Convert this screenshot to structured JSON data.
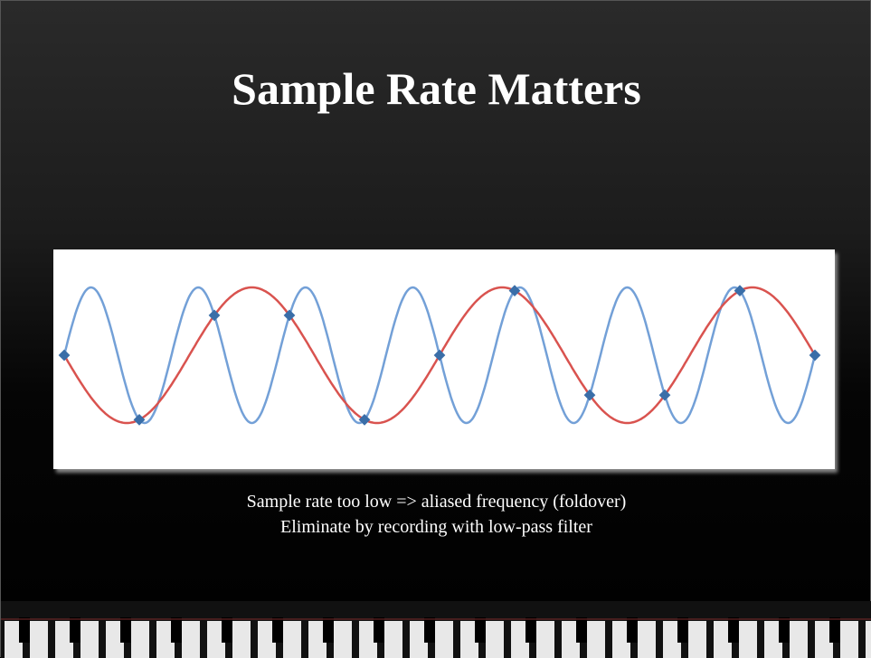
{
  "title": "Sample Rate Matters",
  "caption": [
    "Sample rate too low => aliased frequency (foldover)",
    "Eliminate by recording with low-pass filter"
  ]
}
